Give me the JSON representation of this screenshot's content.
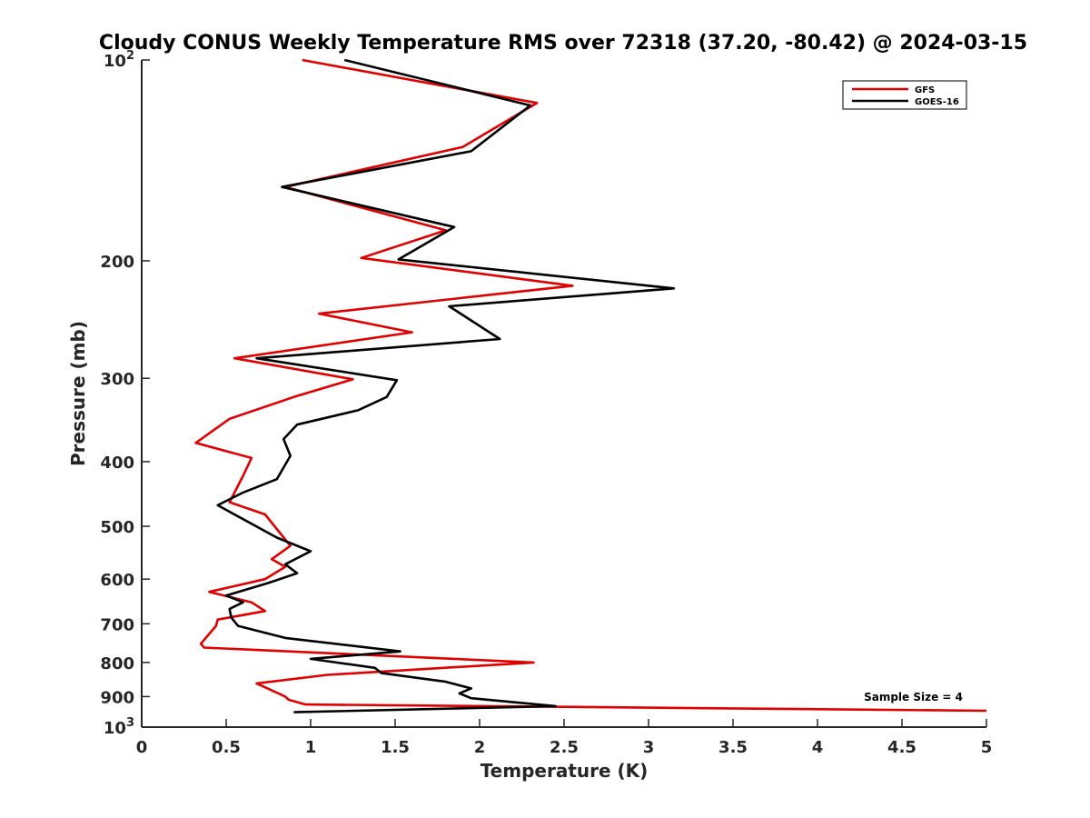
{
  "chart_data": {
    "type": "line",
    "title": "Cloudy CONUS Weekly Temperature RMS over 72318 (37.20, -80.42) @ 2024-03-15",
    "xlabel": "Temperature (K)",
    "ylabel": "Pressure (mb)",
    "xlim": [
      0,
      5
    ],
    "ylim": [
      100,
      1000
    ],
    "y_scale": "log",
    "y_reversed": true,
    "x_ticks": [
      "0",
      "0.5",
      "1",
      "1.5",
      "2",
      "2.5",
      "3",
      "3.5",
      "4",
      "4.5",
      "5"
    ],
    "y_ticks": [
      {
        "value": 100,
        "label": "10",
        "sup": "2"
      },
      {
        "value": 200,
        "label": "200",
        "sup": ""
      },
      {
        "value": 300,
        "label": "300",
        "sup": ""
      },
      {
        "value": 400,
        "label": "400",
        "sup": ""
      },
      {
        "value": 500,
        "label": "500",
        "sup": ""
      },
      {
        "value": 600,
        "label": "600",
        "sup": ""
      },
      {
        "value": 700,
        "label": "700",
        "sup": ""
      },
      {
        "value": 800,
        "label": "800",
        "sup": ""
      },
      {
        "value": 900,
        "label": "900",
        "sup": ""
      },
      {
        "value": 1000,
        "label": "10",
        "sup": "3"
      }
    ],
    "grid": false,
    "legend_position": "top-right",
    "annotation": "Sample Size = 4",
    "series": [
      {
        "name": "GFS",
        "color": "#e00000",
        "points": [
          [
            0.95,
            100
          ],
          [
            2.34,
            116
          ],
          [
            1.9,
            135
          ],
          [
            0.85,
            155
          ],
          [
            1.8,
            180
          ],
          [
            1.3,
            198
          ],
          [
            2.55,
            218
          ],
          [
            1.05,
            240
          ],
          [
            1.6,
            256
          ],
          [
            0.55,
            280
          ],
          [
            1.25,
            301
          ],
          [
            0.9,
            320
          ],
          [
            0.52,
            345
          ],
          [
            0.32,
            375
          ],
          [
            0.65,
            395
          ],
          [
            0.6,
            420
          ],
          [
            0.52,
            460
          ],
          [
            0.73,
            480
          ],
          [
            0.88,
            535
          ],
          [
            0.77,
            560
          ],
          [
            0.85,
            575
          ],
          [
            0.73,
            600
          ],
          [
            0.4,
            627
          ],
          [
            0.65,
            650
          ],
          [
            0.73,
            670
          ],
          [
            0.45,
            690
          ],
          [
            0.44,
            705
          ],
          [
            0.35,
            750
          ],
          [
            0.37,
            760
          ],
          [
            2.32,
            800
          ],
          [
            1.1,
            835
          ],
          [
            0.68,
            860
          ],
          [
            0.85,
            900
          ],
          [
            0.87,
            910
          ],
          [
            0.97,
            925
          ],
          [
            5.0,
            945
          ]
        ]
      },
      {
        "name": "GOES-16",
        "color": "#000000",
        "points": [
          [
            1.2,
            100
          ],
          [
            2.3,
            117
          ],
          [
            1.95,
            137
          ],
          [
            0.83,
            155
          ],
          [
            1.85,
            178
          ],
          [
            1.52,
            199
          ],
          [
            3.15,
            220
          ],
          [
            1.82,
            234
          ],
          [
            2.12,
            262
          ],
          [
            0.68,
            280
          ],
          [
            1.51,
            302
          ],
          [
            1.45,
            320
          ],
          [
            1.28,
            335
          ],
          [
            0.92,
            352
          ],
          [
            0.84,
            370
          ],
          [
            0.88,
            392
          ],
          [
            0.8,
            425
          ],
          [
            0.6,
            445
          ],
          [
            0.45,
            465
          ],
          [
            0.8,
            520
          ],
          [
            1.0,
            545
          ],
          [
            0.85,
            570
          ],
          [
            0.92,
            588
          ],
          [
            0.75,
            608
          ],
          [
            0.5,
            635
          ],
          [
            0.6,
            650
          ],
          [
            0.52,
            665
          ],
          [
            0.53,
            685
          ],
          [
            0.57,
            705
          ],
          [
            0.85,
            735
          ],
          [
            1.53,
            770
          ],
          [
            1.0,
            790
          ],
          [
            1.38,
            815
          ],
          [
            1.42,
            830
          ],
          [
            1.8,
            855
          ],
          [
            1.95,
            875
          ],
          [
            1.88,
            890
          ],
          [
            1.95,
            905
          ],
          [
            2.45,
            930
          ],
          [
            0.9,
            950
          ]
        ]
      }
    ]
  }
}
